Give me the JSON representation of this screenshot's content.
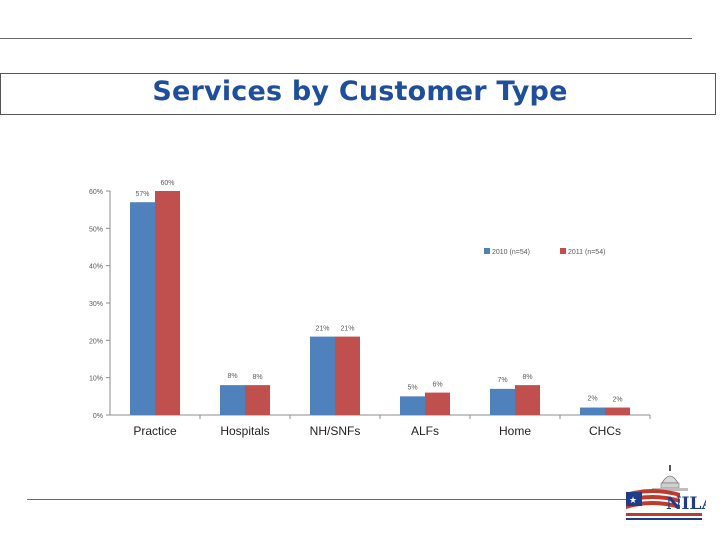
{
  "page": {
    "title": "Services by Customer Type"
  },
  "chart_data": {
    "type": "bar",
    "title": "Services by Customer Type",
    "xlabel": "",
    "ylabel": "",
    "ylim": [
      0,
      60
    ],
    "y_ticks": [
      0,
      10,
      20,
      30,
      40,
      50,
      60
    ],
    "y_tick_labels": [
      "0%",
      "10%",
      "20%",
      "30%",
      "40%",
      "50%",
      "60%"
    ],
    "grid": false,
    "legend_position": "right",
    "categories": [
      "Practice",
      "Hospitals",
      "NH/SNFs",
      "ALFs",
      "Home",
      "CHCs"
    ],
    "series": [
      {
        "name": "2010 (n=54)",
        "color": "#4f81bd",
        "values": [
          57,
          8,
          21,
          5,
          7,
          2
        ],
        "labels": [
          "57%",
          "8%",
          "21%",
          "5%",
          "7%",
          "2%"
        ]
      },
      {
        "name": "2011 (n=54)",
        "color": "#c0504d",
        "values": [
          60,
          8,
          21,
          6,
          8,
          2
        ],
        "labels": [
          "60%",
          "8%",
          "21%",
          "6%",
          "8%",
          "2%"
        ]
      }
    ]
  },
  "logo": {
    "text": "NILA",
    "icon": "capitol-flag-logo"
  }
}
